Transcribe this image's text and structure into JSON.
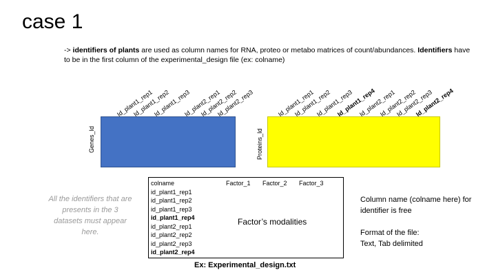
{
  "title": "case 1",
  "intro": {
    "prefix": "-> ",
    "bold1": "identifiers of plants",
    "mid1": " are  used as column names for RNA, proteo or  metabo matrices of count/abundances. ",
    "bold2": "Identifiers",
    "mid2": " have to be in the first  column of the experimental_design file (ex: colname)"
  },
  "rna": {
    "row_label": "Genes_Id",
    "color": "#4472C4",
    "columns": [
      "Id_plant1_rep1",
      "Id_plant1_rep2",
      "Id_plant1_rep3",
      "Id_plant2_rep1",
      "Id_plant2_rep2",
      "Id_plant2_rep3"
    ]
  },
  "proteo": {
    "row_label": "Proteins_Id",
    "color": "#FFFF00",
    "columns": [
      "Id_plant1_rep1",
      "Id_plant1_rep2",
      "Id_plant1_rep3",
      "Id_plant1_rep4",
      "Id_plant2_rep1",
      "Id_plant2_rep2",
      "Id_plant2_rep3",
      "Id_plant2_rep4"
    ],
    "bold_columns": [
      "Id_plant1_rep4",
      "Id_plant2_rep4"
    ]
  },
  "design": {
    "header": "colname",
    "rows": [
      "id_plant1_rep1",
      "id_plant1_rep2",
      "id_plant1_rep3",
      "id_plant1_rep4",
      "id_plant2_rep1",
      "id_plant2_rep2",
      "id_plant2_rep3",
      "id_plant2_rep4"
    ],
    "bold_rows": [
      "id_plant1_rep4",
      "id_plant2_rep4"
    ],
    "factors": [
      "Factor_1",
      "Factor_2",
      "Factor_3"
    ],
    "modalities": "Factor’s modalities",
    "caption": "Ex: Experimental_design.txt"
  },
  "left_note": "All the identifiers that are presents in the 3 datasets must appear here.",
  "right_note": {
    "line1": "Column name (colname here) for identifier is free",
    "line2a": "Format of the file:",
    "line2b": "Text, Tab delimited"
  }
}
